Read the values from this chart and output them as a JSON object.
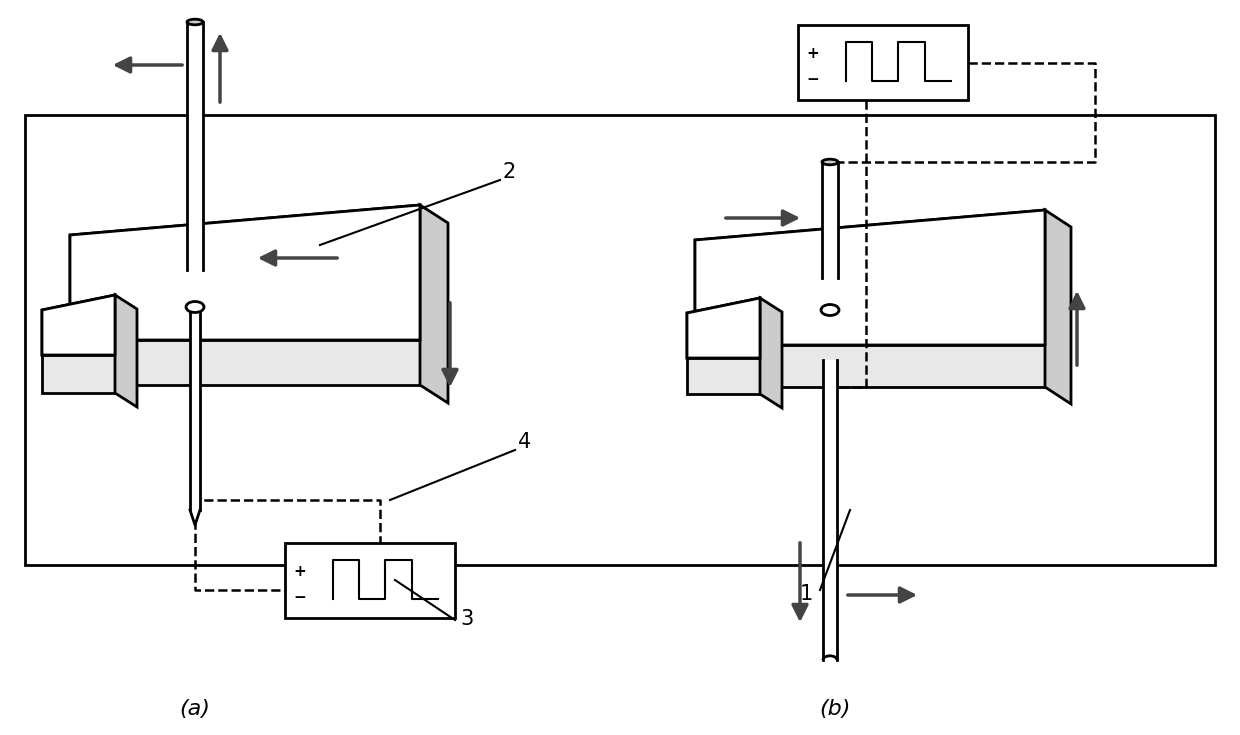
{
  "bg_color": "#ffffff",
  "fig_width": 12.4,
  "fig_height": 7.35,
  "dpi": 100,
  "label_a": "(a)",
  "label_b": "(b)",
  "label_1": "1",
  "label_2": "2",
  "label_3": "3",
  "label_4": "4"
}
